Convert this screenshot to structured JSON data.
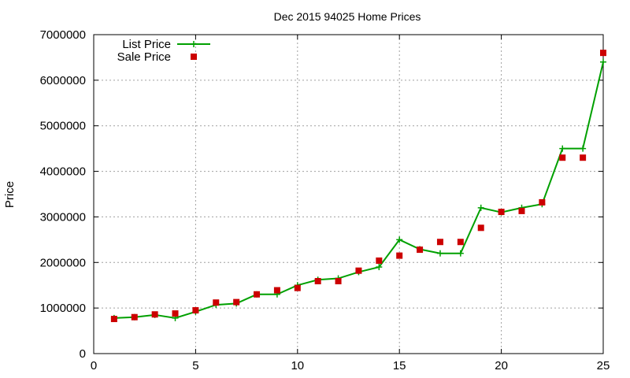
{
  "chart_data": {
    "type": "line",
    "title": "Dec 2015 94025 Home Prices",
    "xlabel": "",
    "ylabel": "Price",
    "xlim": [
      0,
      25
    ],
    "ylim": [
      0,
      7000000
    ],
    "x_ticks": [
      0,
      5,
      10,
      15,
      20,
      25
    ],
    "y_ticks": [
      0,
      1000000,
      2000000,
      3000000,
      4000000,
      5000000,
      6000000,
      7000000
    ],
    "grid": true,
    "legend_position": "top-left",
    "series": [
      {
        "name": "List Price",
        "style": "line-with-plus-markers",
        "color": "#00a000",
        "x": [
          1,
          2,
          3,
          4,
          5,
          6,
          7,
          8,
          9,
          10,
          11,
          12,
          13,
          14,
          15,
          16,
          17,
          18,
          19,
          20,
          21,
          22,
          23,
          24,
          25
        ],
        "values": [
          780000,
          800000,
          850000,
          780000,
          920000,
          1070000,
          1100000,
          1300000,
          1300000,
          1500000,
          1620000,
          1650000,
          1790000,
          1900000,
          2500000,
          2290000,
          2200000,
          2200000,
          3200000,
          3100000,
          3200000,
          3280000,
          4500000,
          4500000,
          6400000
        ]
      },
      {
        "name": "Sale Price",
        "style": "square-markers",
        "color": "#cc0000",
        "x": [
          1,
          2,
          3,
          4,
          5,
          6,
          7,
          8,
          9,
          10,
          11,
          12,
          13,
          14,
          15,
          16,
          17,
          18,
          19,
          20,
          21,
          22,
          23,
          24,
          25
        ],
        "values": [
          760000,
          800000,
          860000,
          880000,
          950000,
          1120000,
          1130000,
          1300000,
          1390000,
          1440000,
          1590000,
          1590000,
          1820000,
          2040000,
          2150000,
          2280000,
          2450000,
          2450000,
          2760000,
          3110000,
          3130000,
          3320000,
          4300000,
          4300000,
          6600000
        ]
      }
    ]
  }
}
